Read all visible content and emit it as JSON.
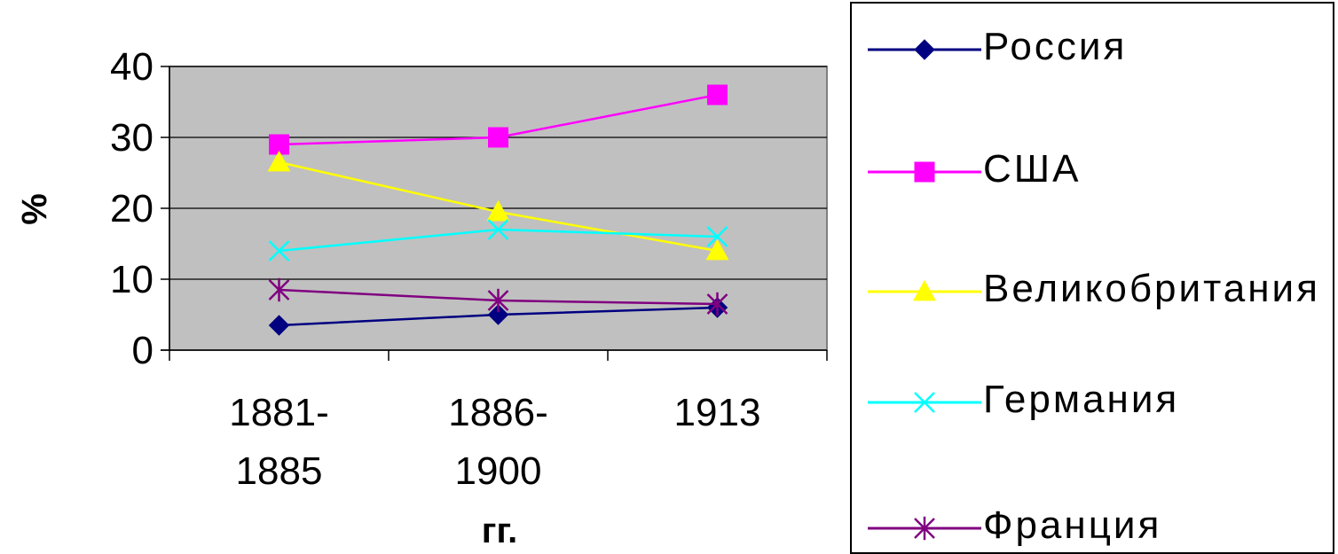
{
  "chart_data": {
    "type": "line",
    "categories": [
      "1881-\n1885",
      "1886-\n1900",
      "1913"
    ],
    "xlabel": "гг.",
    "ylabel": "%",
    "ylim": [
      0,
      40
    ],
    "yticks": [
      0,
      10,
      20,
      30,
      40
    ],
    "grid": true,
    "plot_background": "#c0c0c0",
    "legend_position": "right",
    "series": [
      {
        "name": "Россия",
        "values": [
          3.5,
          5,
          6
        ],
        "color": "#000080",
        "marker": "diamond"
      },
      {
        "name": "США",
        "values": [
          29,
          30,
          36
        ],
        "color": "#ff00ff",
        "marker": "square"
      },
      {
        "name": "Великобритания",
        "values": [
          26.5,
          19.5,
          14
        ],
        "color": "#ffff00",
        "marker": "triangle"
      },
      {
        "name": "Германия",
        "values": [
          14,
          17,
          16
        ],
        "color": "#00ffff",
        "marker": "x"
      },
      {
        "name": "Франция",
        "values": [
          8.5,
          7,
          6.5
        ],
        "color": "#800080",
        "marker": "star"
      }
    ]
  }
}
